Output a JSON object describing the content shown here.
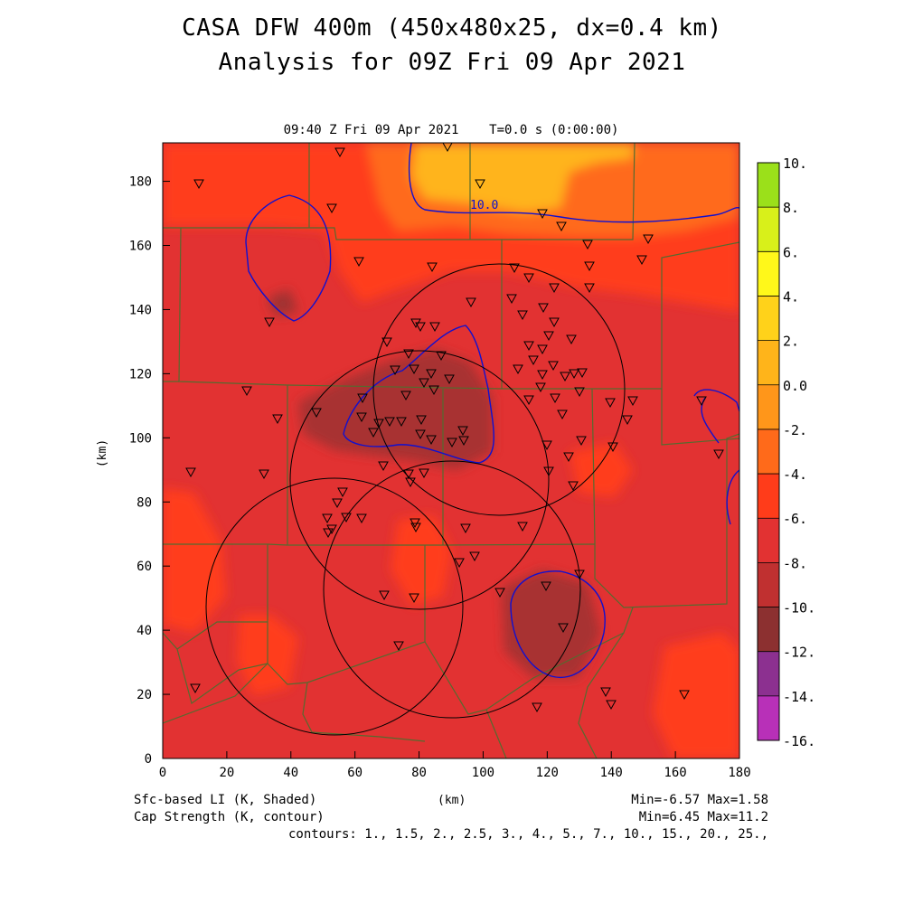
{
  "header": {
    "title_line1": "CASA DFW 400m (450x480x25, dx=0.4 km)",
    "title_line2": "Analysis for 09Z Fri 09 Apr 2021",
    "plot_time": "09:40 Z Fri 09 Apr 2021    T=0.0 s (0:00:00)"
  },
  "axes": {
    "xlabel": "(km)",
    "ylabel": "(km)",
    "x_ticks": [
      "0",
      "20",
      "40",
      "60",
      "80",
      "100",
      "120",
      "140",
      "160",
      "180"
    ],
    "y_ticks": [
      "0",
      "20",
      "40",
      "60",
      "80",
      "100",
      "120",
      "140",
      "160",
      "180"
    ],
    "xlim": [
      0,
      180
    ],
    "ylim": [
      0,
      192
    ]
  },
  "colorbar": {
    "labels": [
      "10.",
      "8.",
      "6.",
      "4.",
      "2.",
      "0.0",
      "-2.",
      "-4.",
      "-6.",
      "-8.",
      "-10.",
      "-12.",
      "-14.",
      "-16."
    ],
    "colors": [
      "#9be01a",
      "#d8f01a",
      "#fff81a",
      "#ffd21a",
      "#ffb41a",
      "#ff961a",
      "#ff6a1a",
      "#ff3c1a",
      "#e23232",
      "#c03030",
      "#8c3030",
      "#8c3090",
      "#b830b8",
      "#d83ce0"
    ]
  },
  "contour": {
    "label": "10.0",
    "color": "#1010d0"
  },
  "footer": {
    "field1": "Sfc-based LI (K, Shaded)",
    "field2": "Cap Strength (K, contour)",
    "xunit": "(km)",
    "stats1": "Min=-6.57 Max=1.58",
    "stats2": "Min=6.45 Max=11.2",
    "contours": "contours: 1., 1.5, 2., 2.5, 3., 4., 5., 7., 10., 15., 20., 25.,"
  },
  "colors": {
    "background_field": "#e23232",
    "county_lines": "#556b2f",
    "radar_rings": "#000000",
    "stations": "#000000"
  }
}
